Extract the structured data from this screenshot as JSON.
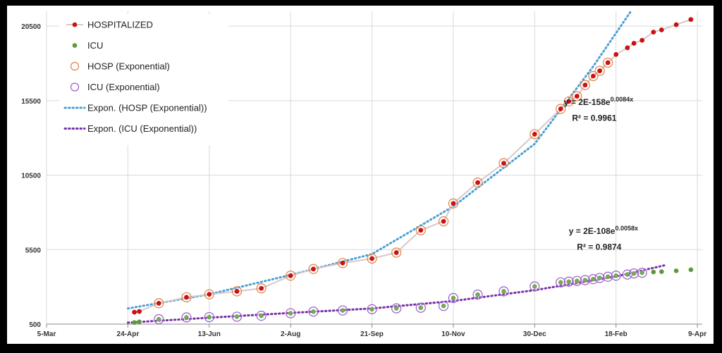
{
  "chart_data": {
    "type": "scatter",
    "title": "",
    "xlabel": "",
    "ylabel": "",
    "xlim": [
      "2020-03-05",
      "2021-04-12"
    ],
    "ylim": [
      500,
      21500
    ],
    "x_ticks": [
      {
        "date": "2020-03-05",
        "label": "5-Mar"
      },
      {
        "date": "2020-04-24",
        "label": "24-Apr"
      },
      {
        "date": "2020-06-13",
        "label": "13-Jun"
      },
      {
        "date": "2020-08-02",
        "label": "2-Aug"
      },
      {
        "date": "2020-09-21",
        "label": "21-Sep"
      },
      {
        "date": "2020-11-10",
        "label": "10-Nov"
      },
      {
        "date": "2020-12-30",
        "label": "30-Dec"
      },
      {
        "date": "2021-02-18",
        "label": "18-Feb"
      },
      {
        "date": "2021-04-09",
        "label": "9-Apr"
      }
    ],
    "y_ticks": [
      {
        "value": 500,
        "label": "500"
      },
      {
        "value": 5500,
        "label": "5500"
      },
      {
        "value": 10500,
        "label": "10500"
      },
      {
        "value": 15500,
        "label": "15500"
      },
      {
        "value": 20500,
        "label": "20500"
      }
    ],
    "grid": true,
    "legend_position": "top-left",
    "series": [
      {
        "name": "HOSPITALIZED",
        "marker": "dot",
        "line": true,
        "color": "#cc1111",
        "points": [
          [
            "2020-04-28",
            1300
          ],
          [
            "2020-05-01",
            1350
          ],
          [
            "2020-05-13",
            1900
          ],
          [
            "2020-05-30",
            2300
          ],
          [
            "2020-06-13",
            2500
          ],
          [
            "2020-06-30",
            2700
          ],
          [
            "2020-07-15",
            2900
          ],
          [
            "2020-08-02",
            3750
          ],
          [
            "2020-08-16",
            4200
          ],
          [
            "2020-09-03",
            4600
          ],
          [
            "2020-09-21",
            4900
          ],
          [
            "2020-10-06",
            5300
          ],
          [
            "2020-10-21",
            6800
          ],
          [
            "2020-11-04",
            7400
          ],
          [
            "2020-11-10",
            8600
          ],
          [
            "2020-11-25",
            10000
          ],
          [
            "2020-12-11",
            11300
          ],
          [
            "2020-12-30",
            13250
          ],
          [
            "2021-01-15",
            14950
          ],
          [
            "2021-01-20",
            15450
          ],
          [
            "2021-01-25",
            15800
          ],
          [
            "2021-01-30",
            16550
          ],
          [
            "2021-02-04",
            17150
          ],
          [
            "2021-02-08",
            17500
          ],
          [
            "2021-02-13",
            18050
          ],
          [
            "2021-02-18",
            18600
          ],
          [
            "2021-02-25",
            19050
          ],
          [
            "2021-03-01",
            19350
          ],
          [
            "2021-03-06",
            19550
          ],
          [
            "2021-03-13",
            20100
          ],
          [
            "2021-03-18",
            20250
          ],
          [
            "2021-03-27",
            20600
          ],
          [
            "2021-04-05",
            20950
          ]
        ]
      },
      {
        "name": "ICU",
        "marker": "dot",
        "line": false,
        "color": "#5b9a3a",
        "points": [
          [
            "2020-04-28",
            610
          ],
          [
            "2020-05-01",
            650
          ],
          [
            "2020-05-13",
            830
          ],
          [
            "2020-05-30",
            950
          ],
          [
            "2020-06-13",
            970
          ],
          [
            "2020-06-30",
            1000
          ],
          [
            "2020-07-15",
            1060
          ],
          [
            "2020-08-02",
            1230
          ],
          [
            "2020-08-16",
            1340
          ],
          [
            "2020-09-03",
            1420
          ],
          [
            "2020-09-21",
            1500
          ],
          [
            "2020-10-06",
            1560
          ],
          [
            "2020-10-21",
            1600
          ],
          [
            "2020-11-04",
            1720
          ],
          [
            "2020-11-10",
            2250
          ],
          [
            "2020-11-25",
            2480
          ],
          [
            "2020-12-11",
            2700
          ],
          [
            "2020-12-30",
            3030
          ],
          [
            "2021-01-15",
            3300
          ],
          [
            "2021-01-20",
            3350
          ],
          [
            "2021-01-25",
            3400
          ],
          [
            "2021-01-30",
            3450
          ],
          [
            "2021-02-04",
            3520
          ],
          [
            "2021-02-08",
            3600
          ],
          [
            "2021-02-13",
            3680
          ],
          [
            "2021-02-18",
            3750
          ],
          [
            "2021-02-25",
            3830
          ],
          [
            "2021-03-01",
            3900
          ],
          [
            "2021-03-06",
            3950
          ],
          [
            "2021-03-13",
            4000
          ],
          [
            "2021-03-18",
            4020
          ],
          [
            "2021-03-27",
            4080
          ],
          [
            "2021-04-05",
            4150
          ]
        ]
      },
      {
        "name": "HOSP (Exponential)",
        "marker": "ring",
        "line": false,
        "color": "#e08040",
        "points": [
          [
            "2020-05-13",
            1900
          ],
          [
            "2020-05-30",
            2300
          ],
          [
            "2020-06-13",
            2500
          ],
          [
            "2020-06-30",
            2700
          ],
          [
            "2020-07-15",
            2900
          ],
          [
            "2020-08-02",
            3750
          ],
          [
            "2020-08-16",
            4200
          ],
          [
            "2020-09-03",
            4600
          ],
          [
            "2020-09-21",
            4900
          ],
          [
            "2020-10-06",
            5300
          ],
          [
            "2020-10-21",
            6800
          ],
          [
            "2020-11-04",
            7400
          ],
          [
            "2020-11-10",
            8600
          ],
          [
            "2020-11-25",
            10000
          ],
          [
            "2020-12-11",
            11300
          ],
          [
            "2020-12-30",
            13250
          ],
          [
            "2021-01-15",
            14950
          ],
          [
            "2021-01-20",
            15450
          ],
          [
            "2021-01-25",
            15800
          ],
          [
            "2021-01-30",
            16550
          ],
          [
            "2021-02-04",
            17150
          ],
          [
            "2021-02-08",
            17500
          ],
          [
            "2021-02-13",
            18050
          ]
        ]
      },
      {
        "name": "ICU (Exponential)",
        "marker": "ring",
        "line": false,
        "color": "#9b59c9",
        "points": [
          [
            "2020-05-13",
            830
          ],
          [
            "2020-05-30",
            950
          ],
          [
            "2020-06-13",
            970
          ],
          [
            "2020-06-30",
            1000
          ],
          [
            "2020-07-15",
            1060
          ],
          [
            "2020-08-02",
            1230
          ],
          [
            "2020-08-16",
            1340
          ],
          [
            "2020-09-03",
            1420
          ],
          [
            "2020-09-21",
            1500
          ],
          [
            "2020-10-06",
            1560
          ],
          [
            "2020-10-21",
            1600
          ],
          [
            "2020-11-04",
            1720
          ],
          [
            "2020-11-10",
            2250
          ],
          [
            "2020-11-25",
            2480
          ],
          [
            "2020-12-11",
            2700
          ],
          [
            "2020-12-30",
            3030
          ],
          [
            "2021-01-15",
            3300
          ],
          [
            "2021-01-20",
            3350
          ],
          [
            "2021-01-25",
            3400
          ],
          [
            "2021-01-30",
            3450
          ],
          [
            "2021-02-04",
            3520
          ],
          [
            "2021-02-08",
            3600
          ],
          [
            "2021-02-13",
            3680
          ],
          [
            "2021-02-18",
            3750
          ],
          [
            "2021-02-25",
            3830
          ],
          [
            "2021-03-01",
            3900
          ],
          [
            "2021-03-06",
            3950
          ]
        ]
      }
    ],
    "trendlines": [
      {
        "name": "Expon. (HOSP (Exponential))",
        "color": "#4a9fd6",
        "style": "dotted",
        "points": [
          [
            "2020-04-24",
            1550
          ],
          [
            "2020-06-13",
            2500
          ],
          [
            "2020-08-02",
            3800
          ],
          [
            "2020-09-21",
            5200
          ],
          [
            "2020-11-10",
            8400
          ],
          [
            "2020-12-30",
            12600
          ],
          [
            "2021-02-04",
            17800
          ],
          [
            "2021-03-01",
            21800
          ]
        ]
      },
      {
        "name": "Expon. (ICU (Exponential))",
        "color": "#7a2fa6",
        "style": "dotted",
        "points": [
          [
            "2020-04-24",
            600
          ],
          [
            "2020-06-13",
            930
          ],
          [
            "2020-08-02",
            1250
          ],
          [
            "2020-09-21",
            1550
          ],
          [
            "2020-11-10",
            2050
          ],
          [
            "2020-12-30",
            2780
          ],
          [
            "2021-02-18",
            3700
          ],
          [
            "2021-03-20",
            4450
          ]
        ]
      }
    ],
    "annotations": [
      {
        "id": "hosp-eq",
        "text": "y = 2E-158e",
        "sup": "0.0084x",
        "anchor": [
          "2021-01-17",
          15200
        ]
      },
      {
        "id": "hosp-r2",
        "text": "R² = 0.9961",
        "anchor": [
          "2021-01-22",
          14150
        ]
      },
      {
        "id": "icu-eq",
        "text": "y = 2E-108e",
        "sup": "0.0058x",
        "anchor": [
          "2021-01-20",
          6550
        ]
      },
      {
        "id": "icu-r2",
        "text": "R² = 0.9874",
        "anchor": [
          "2021-01-25",
          5500
        ]
      }
    ]
  }
}
